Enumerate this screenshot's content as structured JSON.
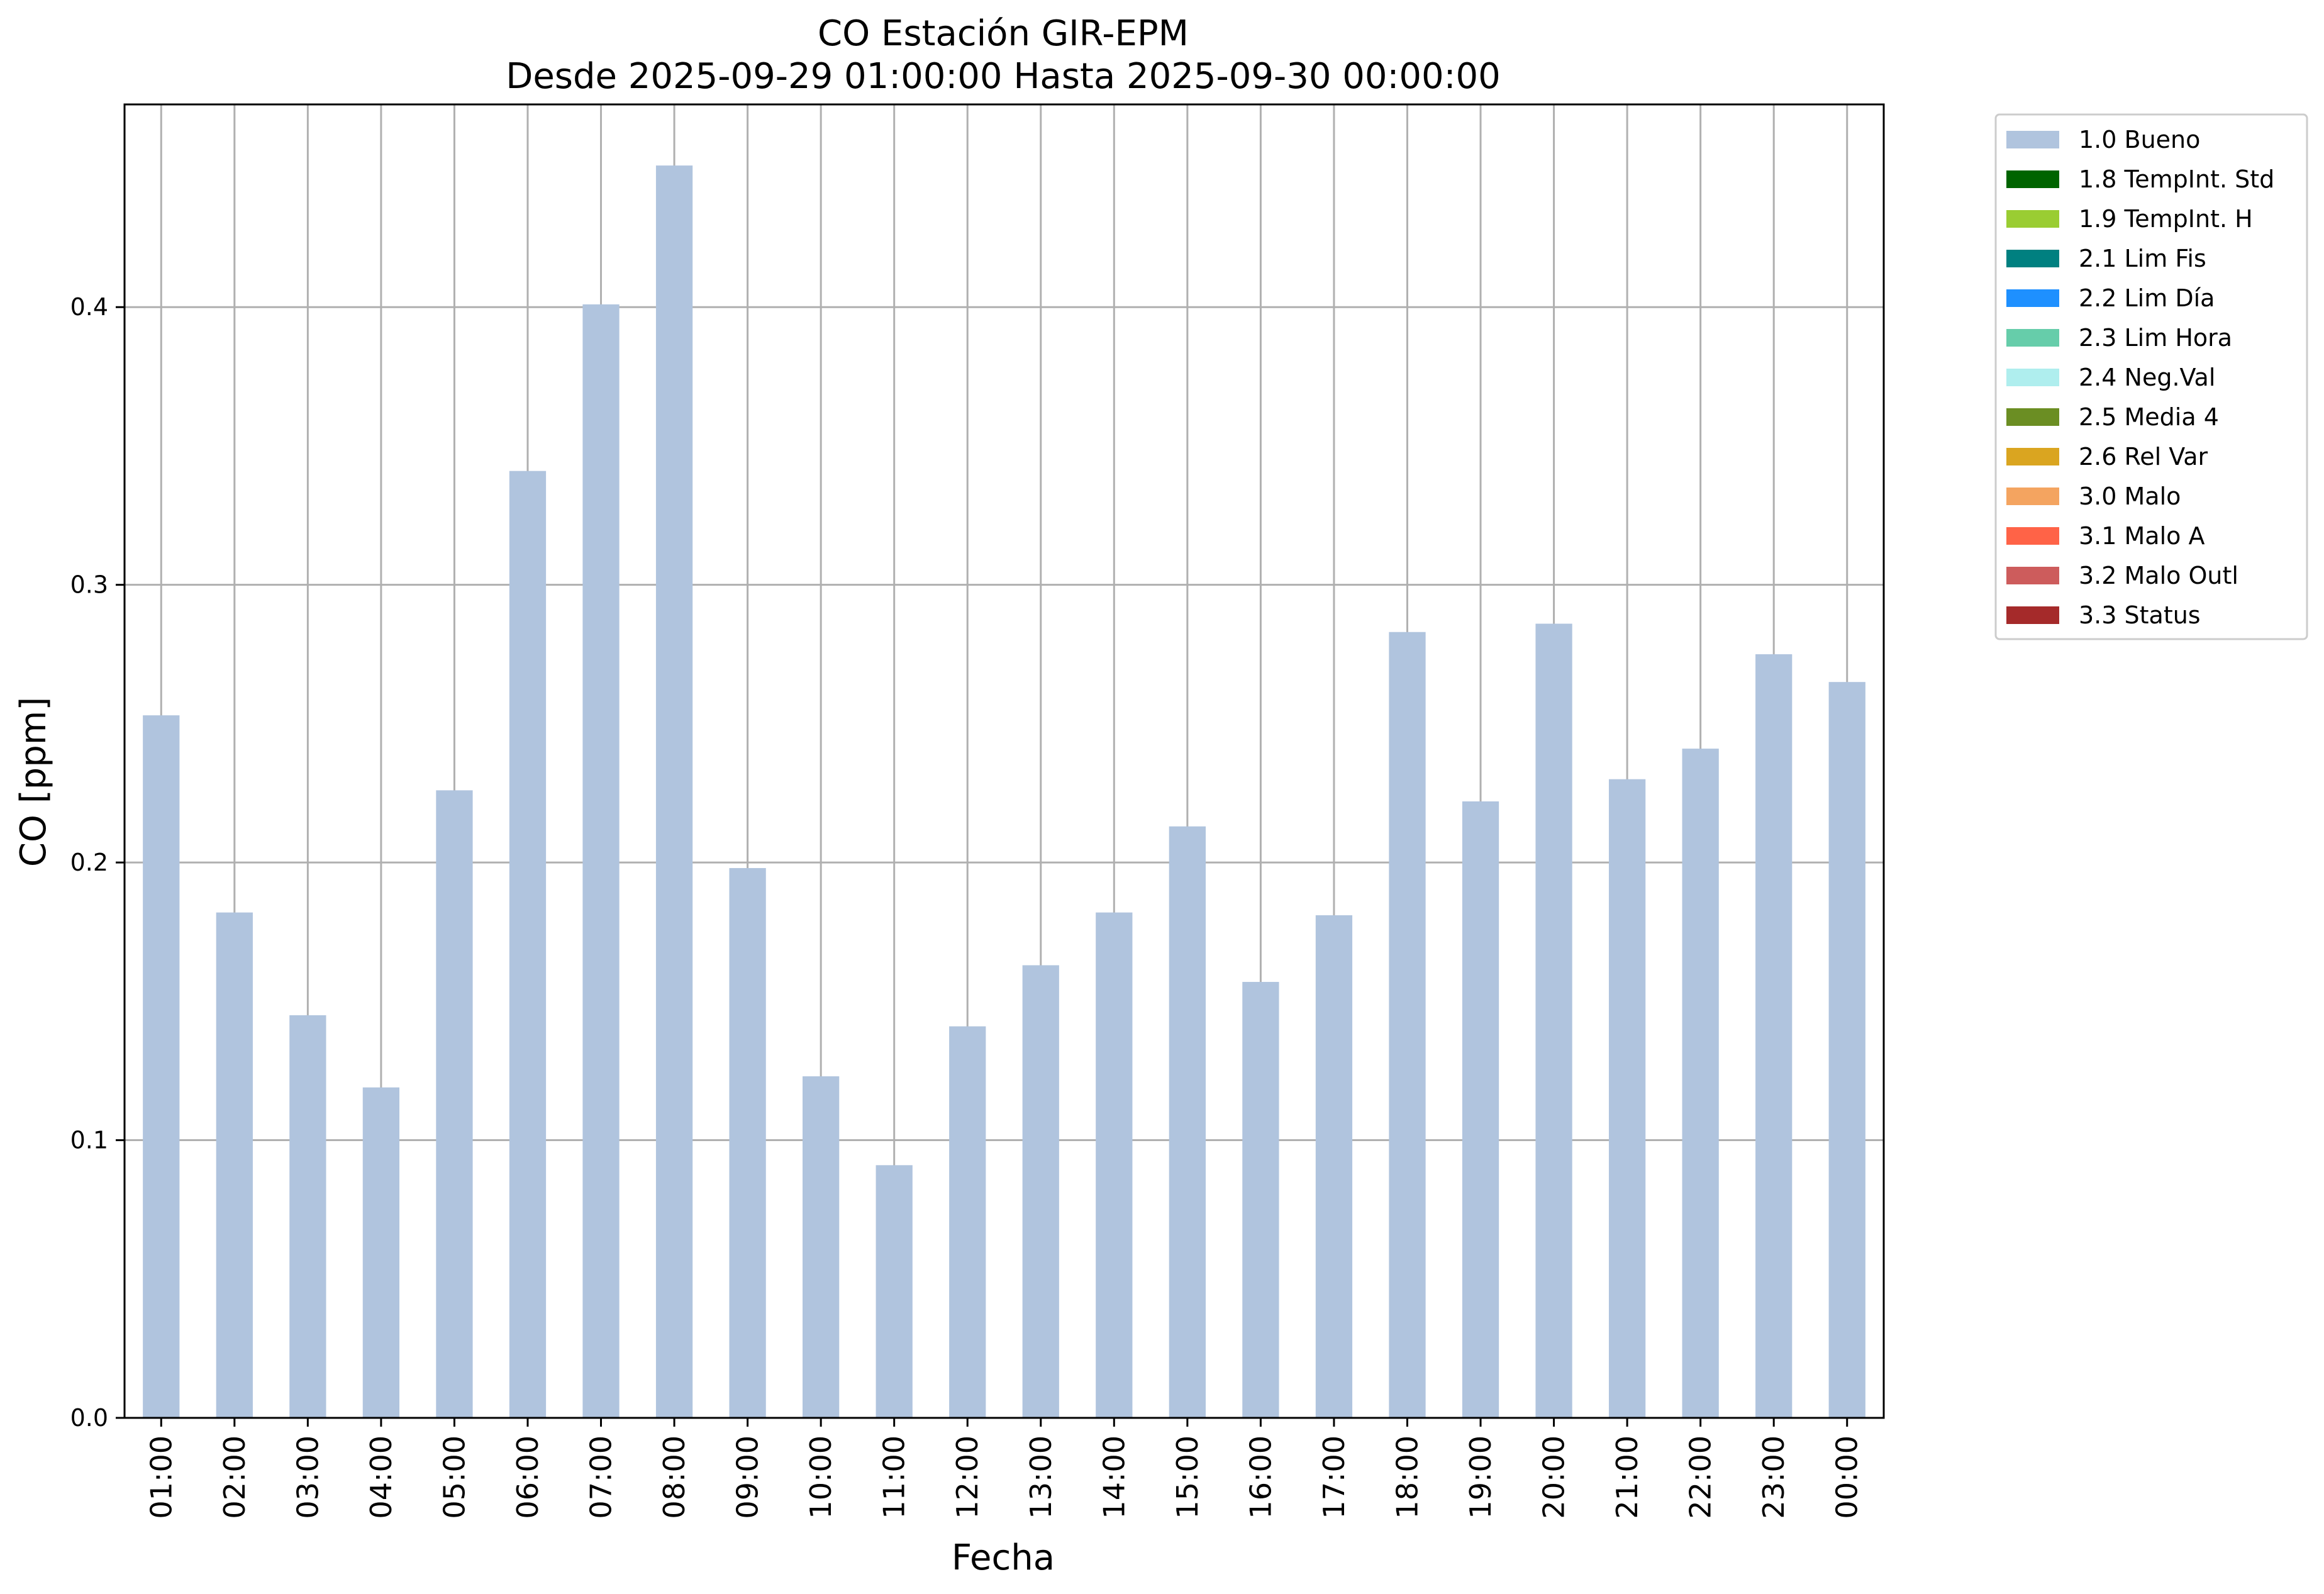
{
  "chart_data": {
    "type": "bar",
    "title": "CO Estación GIR-EPM",
    "subtitle": "Desde 2025-09-29 01:00:00 Hasta 2025-09-30 00:00:00",
    "xlabel": "Fecha",
    "ylabel": "CO [ppm]",
    "ylim": [
      0,
      0.473
    ],
    "yticks": [
      "0.0",
      "0.1",
      "0.2",
      "0.3",
      "0.4"
    ],
    "grid": true,
    "legend_position": "outside-top-right",
    "bar_color": "#b0c4de",
    "categories": [
      "01:00",
      "02:00",
      "03:00",
      "04:00",
      "05:00",
      "06:00",
      "07:00",
      "08:00",
      "09:00",
      "10:00",
      "11:00",
      "12:00",
      "13:00",
      "14:00",
      "15:00",
      "16:00",
      "17:00",
      "18:00",
      "19:00",
      "20:00",
      "21:00",
      "22:00",
      "23:00",
      "00:00"
    ],
    "series": [
      {
        "name": "1.0 Bueno",
        "values": [
          0.253,
          0.182,
          0.145,
          0.119,
          0.226,
          0.341,
          0.401,
          0.451,
          0.198,
          0.123,
          0.091,
          0.141,
          0.163,
          0.182,
          0.213,
          0.157,
          0.181,
          0.283,
          0.222,
          0.286,
          0.23,
          0.241,
          0.275,
          0.265
        ]
      }
    ],
    "legend": [
      {
        "label": "1.0 Bueno",
        "color": "#b0c4de"
      },
      {
        "label": "1.8 TempInt. Std",
        "color": "#006400"
      },
      {
        "label": "1.9 TempInt. H",
        "color": "#9acd32"
      },
      {
        "label": "2.1 Lim Fis",
        "color": "#008080"
      },
      {
        "label": "2.2 Lim Día",
        "color": "#1e90ff"
      },
      {
        "label": "2.3 Lim Hora",
        "color": "#66cdaa"
      },
      {
        "label": "2.4 Neg.Val",
        "color": "#afeeee"
      },
      {
        "label": "2.5 Media 4",
        "color": "#6b8e23"
      },
      {
        "label": "2.6 Rel Var",
        "color": "#daa520"
      },
      {
        "label": "3.0 Malo",
        "color": "#f4a460"
      },
      {
        "label": "3.1 Malo A",
        "color": "#ff6347"
      },
      {
        "label": "3.2 Malo Outl",
        "color": "#cd5c5c"
      },
      {
        "label": "3.3 Status",
        "color": "#a52a2a"
      }
    ]
  }
}
